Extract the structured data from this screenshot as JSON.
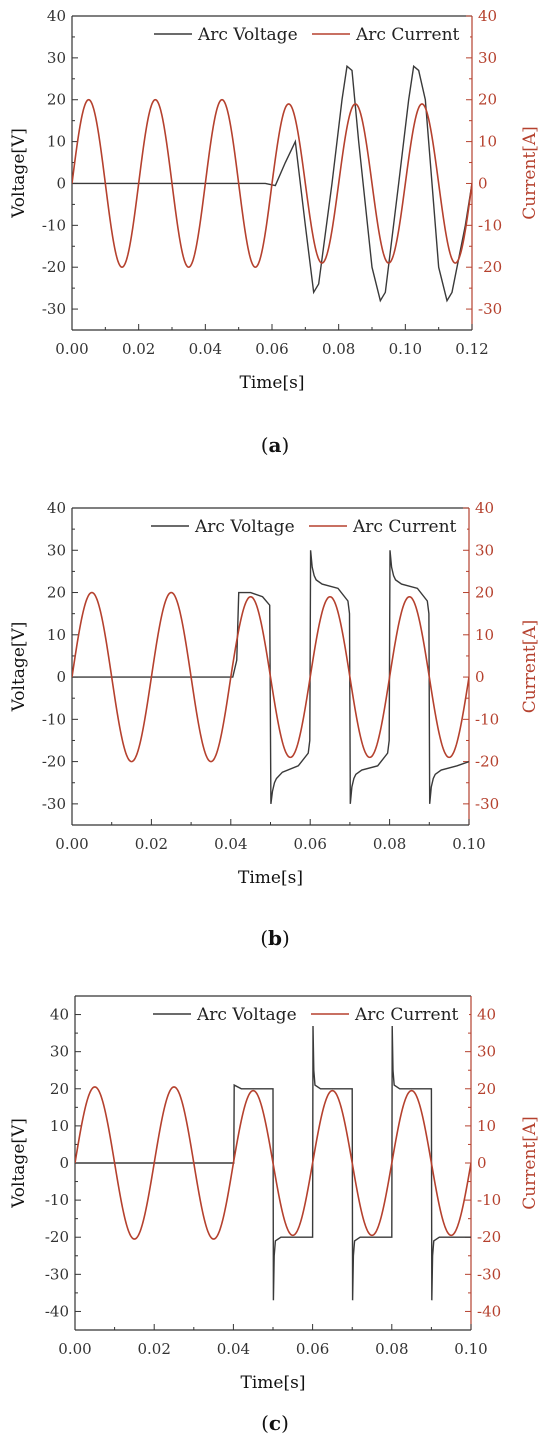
{
  "colors": {
    "voltage": "#3a3a3a",
    "current": "#b5412e",
    "axis": "#333333"
  },
  "chart_data": [
    {
      "panel_label": "a",
      "type": "line",
      "xlabel": "Time[s]",
      "ylabel_left": "Voltage[V]",
      "ylabel_right": "Current[A]",
      "xlim": [
        0,
        0.12
      ],
      "ylim_left": [
        -35,
        40
      ],
      "ylim_right": [
        -35,
        40
      ],
      "xticks": [
        "0.00",
        "0.02",
        "0.04",
        "0.06",
        "0.08",
        "0.10",
        "0.12"
      ],
      "yticks_left": [
        "-30",
        "-20",
        "-10",
        "0",
        "10",
        "20",
        "30",
        "40"
      ],
      "yticks_right": [
        "-30",
        "-20",
        "-10",
        "0",
        "10",
        "20",
        "30",
        "40"
      ],
      "legend_position": "top-right",
      "series": [
        {
          "name": "Arc Voltage",
          "axis": "left",
          "x": [
            0,
            0.058,
            0.061,
            0.064,
            0.067,
            0.07,
            0.0725,
            0.074,
            0.078,
            0.081,
            0.0825,
            0.084,
            0.086,
            0.09,
            0.0925,
            0.094,
            0.098,
            0.101,
            0.1025,
            0.104,
            0.106,
            0.11,
            0.1125,
            0.114,
            0.118,
            0.12
          ],
          "values": [
            0,
            0,
            -0.5,
            5,
            10,
            -10,
            -26,
            -24,
            0,
            20,
            28,
            27,
            10,
            -20,
            -28,
            -26,
            0,
            20,
            28,
            27,
            20,
            -20,
            -28,
            -26,
            -10,
            0
          ]
        },
        {
          "name": "Arc Current",
          "axis": "right",
          "waveform": "sine",
          "frequency_hz": 50,
          "amplitude_segments": [
            {
              "from": 0,
              "to": 0.06,
              "amplitude": 20
            },
            {
              "from": 0.06,
              "to": 0.12,
              "amplitude": 19
            }
          ]
        }
      ]
    },
    {
      "panel_label": "b",
      "type": "line",
      "xlabel": "Time[s]",
      "ylabel_left": "Voltage[V]",
      "ylabel_right": "Current[A]",
      "xlim": [
        0,
        0.1
      ],
      "ylim_left": [
        -35,
        40
      ],
      "ylim_right": [
        -35,
        40
      ],
      "xticks": [
        "0.00",
        "0.02",
        "0.04",
        "0.06",
        "0.08",
        "0.10"
      ],
      "yticks_left": [
        "-30",
        "-20",
        "-10",
        "0",
        "10",
        "20",
        "30",
        "40"
      ],
      "yticks_right": [
        "-30",
        "-20",
        "-10",
        "0",
        "10",
        "20",
        "30",
        "40"
      ],
      "legend_position": "top-right",
      "series": [
        {
          "name": "Arc Voltage",
          "axis": "left",
          "x": [
            0,
            0.0405,
            0.0415,
            0.042,
            0.045,
            0.048,
            0.0498,
            0.0501,
            0.0505,
            0.051,
            0.0515,
            0.053,
            0.057,
            0.0595,
            0.0599,
            0.0601,
            0.0605,
            0.061,
            0.0615,
            0.063,
            0.067,
            0.0695,
            0.0699,
            0.0701,
            0.0705,
            0.071,
            0.0715,
            0.073,
            0.077,
            0.0795,
            0.0799,
            0.0801,
            0.0805,
            0.081,
            0.0815,
            0.083,
            0.087,
            0.0895,
            0.0899,
            0.0901,
            0.0905,
            0.091,
            0.0915,
            0.093,
            0.097,
            0.1
          ],
          "values": [
            0,
            0,
            4,
            20,
            20,
            19,
            17,
            -30,
            -27,
            -25,
            -24,
            -22.5,
            -21,
            -18,
            -15,
            30,
            26,
            24,
            23,
            22,
            21,
            18,
            15,
            -30,
            -26,
            -24,
            -23,
            -22,
            -21,
            -18,
            -15,
            30,
            26,
            24,
            23,
            22,
            21,
            18,
            15,
            -30,
            -26,
            -24,
            -23,
            -22,
            -21,
            -20
          ]
        },
        {
          "name": "Arc Current",
          "axis": "right",
          "waveform": "sine",
          "frequency_hz": 50,
          "amplitude_segments": [
            {
              "from": 0,
              "to": 0.04,
              "amplitude": 20
            },
            {
              "from": 0.04,
              "to": 0.1,
              "amplitude": 19
            }
          ]
        }
      ]
    },
    {
      "panel_label": "c",
      "type": "line",
      "xlabel": "Time[s]",
      "ylabel_left": "Voltage[V]",
      "ylabel_right": "Current[A]",
      "xlim": [
        0,
        0.1
      ],
      "ylim_left": [
        -45,
        45
      ],
      "ylim_right": [
        -45,
        45
      ],
      "xticks": [
        "0.00",
        "0.02",
        "0.04",
        "0.06",
        "0.08",
        "0.10"
      ],
      "yticks_left": [
        "-40",
        "-30",
        "-20",
        "-10",
        "0",
        "10",
        "20",
        "30",
        "40"
      ],
      "yticks_right": [
        "-40",
        "-30",
        "-20",
        "-10",
        "0",
        "10",
        "20",
        "30",
        "40"
      ],
      "legend_position": "top-right",
      "series": [
        {
          "name": "Arc Voltage",
          "axis": "left",
          "x": [
            0,
            0.0401,
            0.0402,
            0.042,
            0.0499,
            0.05,
            0.0501,
            0.0503,
            0.0506,
            0.052,
            0.0599,
            0.06,
            0.0601,
            0.0603,
            0.0606,
            0.062,
            0.0699,
            0.07,
            0.0701,
            0.0703,
            0.0706,
            0.072,
            0.0799,
            0.08,
            0.0801,
            0.0803,
            0.0806,
            0.082,
            0.0899,
            0.09,
            0.0901,
            0.0903,
            0.0906,
            0.092,
            0.1
          ],
          "values": [
            0,
            0,
            21,
            20,
            20,
            20,
            -37,
            -25,
            -21,
            -20,
            -20,
            -20,
            37,
            25,
            21,
            20,
            20,
            20,
            -37,
            -25,
            -21,
            -20,
            -20,
            -20,
            37,
            25,
            21,
            20,
            20,
            20,
            -37,
            -25,
            -21,
            -20,
            -20
          ]
        },
        {
          "name": "Arc Current",
          "axis": "right",
          "waveform": "sine",
          "frequency_hz": 50,
          "amplitude_segments": [
            {
              "from": 0,
              "to": 0.04,
              "amplitude": 20.5
            },
            {
              "from": 0.04,
              "to": 0.1,
              "amplitude": 19.5
            }
          ]
        }
      ]
    }
  ]
}
